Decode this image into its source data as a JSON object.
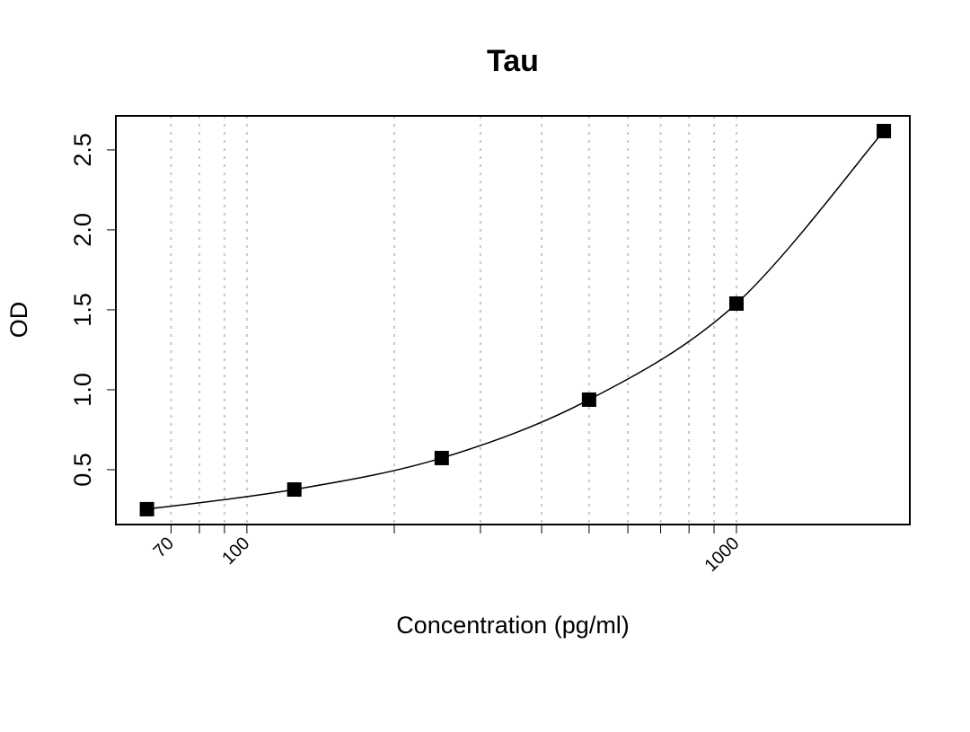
{
  "chart_data": {
    "type": "scatter",
    "title": "Tau",
    "xlabel": "Concentration (pg/ml)",
    "ylabel": "OD",
    "x_scale": "log",
    "xlim": [
      54,
      2260
    ],
    "ylim": [
      0.157,
      2.713
    ],
    "x_ticks": [
      70,
      80,
      90,
      100,
      200,
      300,
      400,
      500,
      600,
      700,
      800,
      900,
      1000
    ],
    "x_tick_labels": [
      {
        "value": 70,
        "label": "70"
      },
      {
        "value": 100,
        "label": "100"
      },
      {
        "value": 1000,
        "label": "1000"
      }
    ],
    "y_ticks": [
      {
        "value": 0.5,
        "label": "0.5"
      },
      {
        "value": 1.0,
        "label": "1.0"
      },
      {
        "value": 1.5,
        "label": "1.5"
      },
      {
        "value": 2.0,
        "label": "2.0"
      },
      {
        "value": 2.5,
        "label": "2.5"
      }
    ],
    "grid": "vertical dotted at x ticks",
    "series": [
      {
        "x": [
          62.5,
          125,
          250,
          500,
          1000,
          2000
        ],
        "y": [
          0.253,
          0.376,
          0.573,
          0.938,
          1.539,
          2.618
        ],
        "marker": "filled-square",
        "color": "#000000",
        "fit_curve": true
      }
    ]
  }
}
